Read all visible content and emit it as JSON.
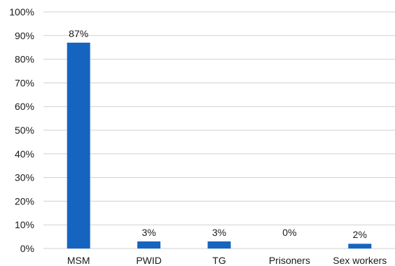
{
  "chart_data": {
    "type": "bar",
    "categories": [
      "MSM",
      "PWID",
      "TG",
      "Prisoners",
      "Sex workers"
    ],
    "values": [
      87,
      3,
      3,
      0,
      2
    ],
    "data_labels": [
      "87%",
      "3%",
      "3%",
      "0%",
      "2%"
    ],
    "yticks": [
      "0%",
      "10%",
      "20%",
      "30%",
      "40%",
      "50%",
      "60%",
      "70%",
      "80%",
      "90%",
      "100%"
    ],
    "ylim": [
      0,
      100
    ],
    "title": "",
    "xlabel": "",
    "ylabel": "",
    "grid": true,
    "bar_color": "#1565c0",
    "grid_color": "#d0d0d0"
  }
}
